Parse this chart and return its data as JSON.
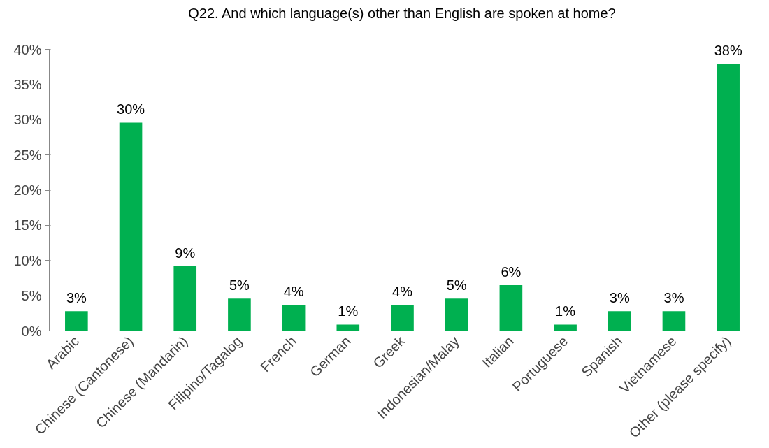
{
  "chart_data": {
    "type": "bar",
    "title": "Q22. And which language(s) other than English are spoken at home?",
    "categories": [
      "Arabic",
      "Chinese (Cantonese)",
      "Chinese (Mandarin)",
      "Filipino/Tagalog",
      "French",
      "German",
      "Greek",
      "Indonesian/Malay",
      "Italian",
      "Portuguese",
      "Spanish",
      "Vietnamese",
      "Other (please specify)"
    ],
    "values": [
      2.8,
      29.6,
      9.2,
      4.6,
      3.7,
      0.9,
      3.7,
      4.6,
      6.5,
      0.9,
      2.8,
      2.8,
      38
    ],
    "value_labels": [
      "3%",
      "30%",
      "9%",
      "5%",
      "4%",
      "1%",
      "4%",
      "5%",
      "6%",
      "1%",
      "3%",
      "3%",
      "38%"
    ],
    "color": "#00b050",
    "ylim": [
      0,
      40
    ],
    "yticks": [
      {
        "value": 0,
        "label": "0%"
      },
      {
        "value": 5,
        "label": "5%"
      },
      {
        "value": 10,
        "label": "10%"
      },
      {
        "value": 15,
        "label": "15%"
      },
      {
        "value": 20,
        "label": "20%"
      },
      {
        "value": 25,
        "label": "25%"
      },
      {
        "value": 30,
        "label": "30%"
      },
      {
        "value": 35,
        "label": "35%"
      },
      {
        "value": 40,
        "label": "40%"
      }
    ],
    "grid": false
  }
}
